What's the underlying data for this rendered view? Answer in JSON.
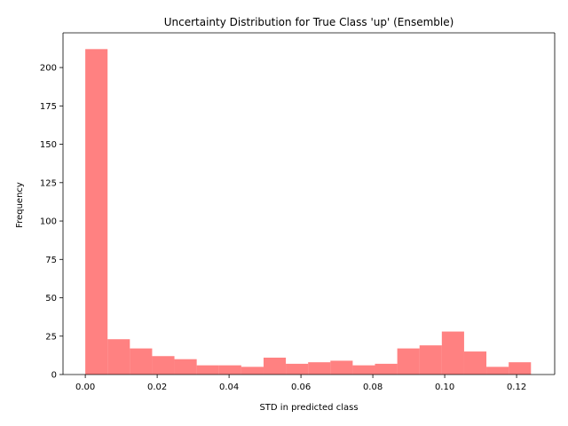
{
  "chart_data": {
    "type": "bar",
    "title": "Uncertainty Distribution for True Class 'up' (Ensemble)",
    "xlabel": "STD in predicted class",
    "ylabel": "Frequency",
    "bar_color": "#ff4c4c",
    "grid": false,
    "x_range": [
      -0.0062,
      0.1306
    ],
    "y_range": [
      0,
      222.6
    ],
    "x_ticks": [
      0.0,
      0.02,
      0.04,
      0.06,
      0.08,
      0.1,
      0.12
    ],
    "x_tick_labels": [
      "0.00",
      "0.02",
      "0.04",
      "0.06",
      "0.08",
      "0.10",
      "0.12"
    ],
    "y_ticks": [
      0,
      25,
      50,
      75,
      100,
      125,
      150,
      175,
      200
    ],
    "y_tick_labels": [
      "0",
      "25",
      "50",
      "75",
      "100",
      "125",
      "150",
      "175",
      "200"
    ],
    "bin_edges": [
      0.0,
      0.0062,
      0.0124,
      0.0186,
      0.0248,
      0.031,
      0.0372,
      0.0434,
      0.0496,
      0.0558,
      0.062,
      0.0682,
      0.0744,
      0.0806,
      0.0868,
      0.093,
      0.0992,
      0.1054,
      0.1116,
      0.1178,
      0.124
    ],
    "counts": [
      212,
      23,
      17,
      12,
      10,
      6,
      6,
      5,
      11,
      7,
      8,
      9,
      6,
      7,
      17,
      19,
      28,
      15,
      5,
      8
    ]
  }
}
